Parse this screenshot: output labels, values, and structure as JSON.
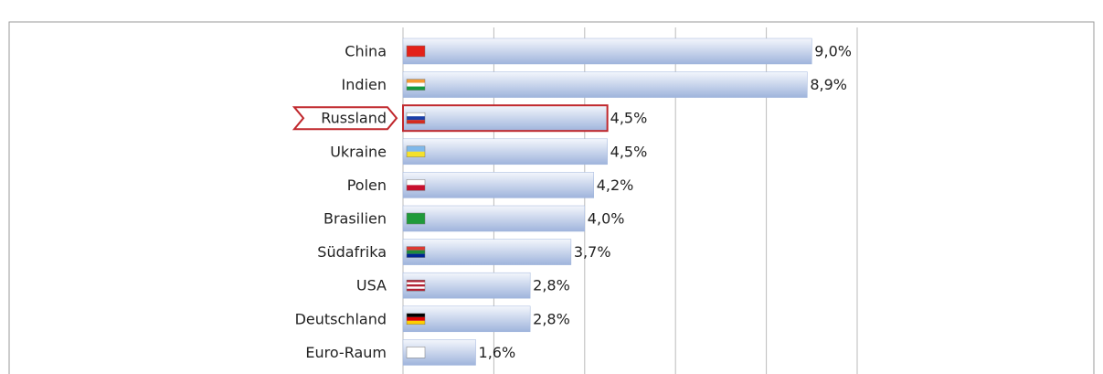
{
  "chart_data": {
    "type": "bar",
    "orientation": "horizontal",
    "categories": [
      "China",
      "Indien",
      "Russland",
      "Ukraine",
      "Polen",
      "Brasilien",
      "Südafrika",
      "USA",
      "Deutschland",
      "Euro-Raum"
    ],
    "values": [
      9.0,
      8.9,
      4.5,
      4.5,
      4.2,
      4.0,
      3.7,
      2.8,
      2.8,
      1.6
    ],
    "value_labels": [
      "9,0%",
      "8,9%",
      "4,5%",
      "4,5%",
      "4,2%",
      "4,0%",
      "3,7%",
      "2,8%",
      "2,8%",
      "1,6%"
    ],
    "color": "#9fb4dc",
    "highlight": 2,
    "highlight_color": "#c0282d",
    "xlim": [
      0,
      10
    ],
    "xticks": [
      0,
      2,
      4,
      6,
      8,
      10
    ],
    "grid": true
  }
}
